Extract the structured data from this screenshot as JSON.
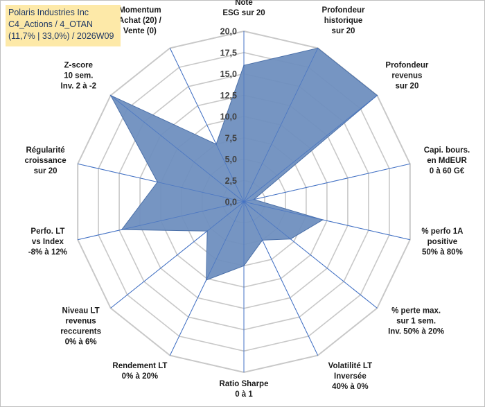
{
  "title": {
    "line1": "Polaris Industries Inc",
    "line2": "C4_Actions / 4_OTAN",
    "line3": "(11,7% | 33,0%) / 2026W09"
  },
  "chart_data": {
    "type": "radar",
    "scale": {
      "min": 0,
      "max": 20,
      "step": 2.5
    },
    "tick_labels": [
      "0,0",
      "2,5",
      "5,0",
      "7,5",
      "10,0",
      "12,5",
      "15,0",
      "17,5",
      "20,0"
    ],
    "axes": [
      {
        "label": [
          "Note",
          "ESG sur 20"
        ],
        "value": 16
      },
      {
        "label": [
          "Profondeur",
          "historique",
          "sur 20"
        ],
        "value": 20
      },
      {
        "label": [
          "Profondeur",
          "revenus",
          "sur 20"
        ],
        "value": 20
      },
      {
        "label": [
          "Capi. bours.",
          "en MdEUR",
          "0 à 60 G€"
        ],
        "value": 1.2
      },
      {
        "label": [
          "% perfo 1A",
          "positive",
          "50% à 80%"
        ],
        "value": 9.5
      },
      {
        "label": [
          "% perte max.",
          "sur 1 sem.",
          "Inv. 50% à 20%"
        ],
        "value": 7
      },
      {
        "label": [
          "Volatilité LT",
          "Inversée",
          "40% à 0%"
        ],
        "value": 5
      },
      {
        "label": [
          "Ratio Sharpe",
          "0 à 1"
        ],
        "value": 7.5
      },
      {
        "label": [
          "Rendement LT",
          "0% à 20%"
        ],
        "value": 10.2
      },
      {
        "label": [
          "Niveau LT",
          "revenus",
          "reccurents",
          "0% à 6%"
        ],
        "value": 5.5
      },
      {
        "label": [
          "Perfo. LT",
          "vs Index",
          "-8% à 12%"
        ],
        "value": 14.7
      },
      {
        "label": [
          "Régularité",
          "croissance",
          "sur 20"
        ],
        "value": 10.4
      },
      {
        "label": [
          "Z-score",
          "10 sem.",
          "Inv. 2 à -2"
        ],
        "value": 20
      },
      {
        "label": [
          "Momentum",
          "Achat (20) /",
          "Vente (0)"
        ],
        "value": 7.5
      }
    ],
    "colors": {
      "fill": "#6f8fbf",
      "stroke": "#4a6fa8",
      "grid": "#c8c8c8",
      "spoke": "#4472c4"
    }
  }
}
